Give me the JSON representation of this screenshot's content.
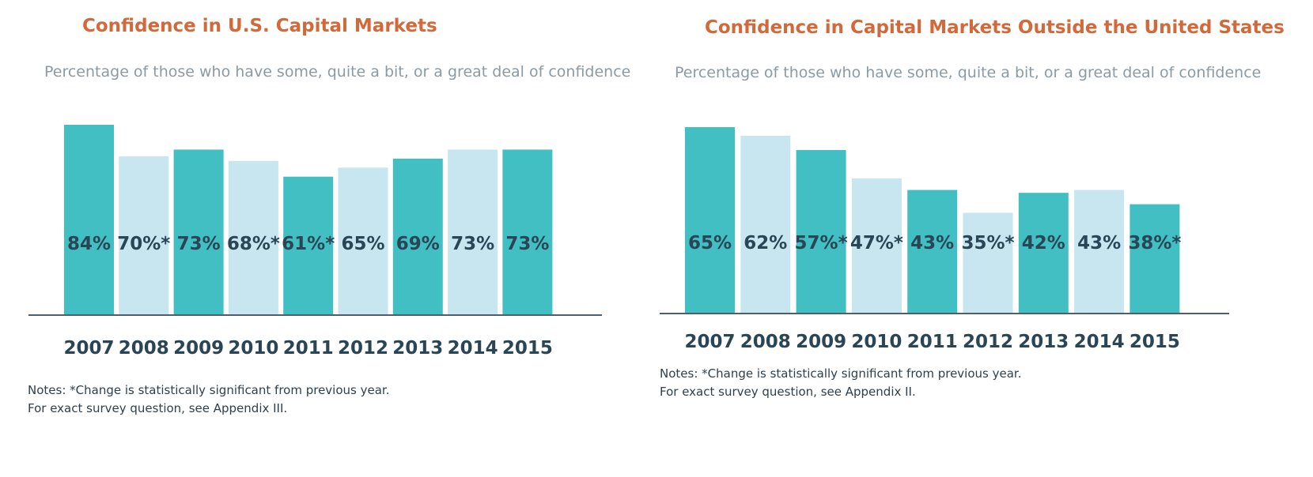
{
  "chart_data": [
    {
      "type": "bar",
      "title": "Confidence in U.S. Capital Markets",
      "subtitle": "Percentage of those who have some, quite a bit, or a great deal of confidence",
      "categories": [
        "2007",
        "2008",
        "2009",
        "2010",
        "2011",
        "2012",
        "2013",
        "2014",
        "2015"
      ],
      "values": [
        84,
        70,
        73,
        68,
        61,
        65,
        69,
        73,
        73
      ],
      "value_labels": [
        "84%",
        "70%*",
        "73%",
        "68%*",
        "61%*",
        "65%",
        "69%",
        "73%",
        "73%"
      ],
      "bar_colors": [
        "#42bfc2",
        "#c7e6f0",
        "#42bfc2",
        "#c7e6f0",
        "#42bfc2",
        "#c7e6f0",
        "#42bfc2",
        "#c7e6f0",
        "#42bfc2"
      ],
      "ylim": [
        0,
        84
      ],
      "grid": false,
      "notes": [
        "Notes: *Change is statistically significant from previous year.",
        "For exact survey question, see Appendix III."
      ]
    },
    {
      "type": "bar",
      "title": "Confidence in Capital Markets Outside the United States",
      "subtitle": "Percentage of those who have some, quite a bit, or a great deal of confidence",
      "categories": [
        "2007",
        "2008",
        "2009",
        "2010",
        "2011",
        "2012",
        "2013",
        "2014",
        "2015"
      ],
      "values": [
        65,
        62,
        57,
        47,
        43,
        35,
        42,
        43,
        38
      ],
      "value_labels": [
        "65%",
        "62%",
        "57%*",
        "47%*",
        "43%",
        "35%*",
        "42%",
        "43%",
        "38%*"
      ],
      "bar_colors": [
        "#42bfc2",
        "#c7e6f0",
        "#42bfc2",
        "#c7e6f0",
        "#42bfc2",
        "#c7e6f0",
        "#42bfc2",
        "#c7e6f0",
        "#42bfc2"
      ],
      "ylim": [
        0,
        65
      ],
      "grid": false,
      "notes": [
        "Notes: *Change is statistically significant from previous year.",
        "For exact survey question, see Appendix II."
      ]
    }
  ],
  "colors": {
    "title": "#d2693a",
    "subtitle": "#8c9aa4",
    "axis": "#4a6070",
    "label": "#2a4556"
  }
}
